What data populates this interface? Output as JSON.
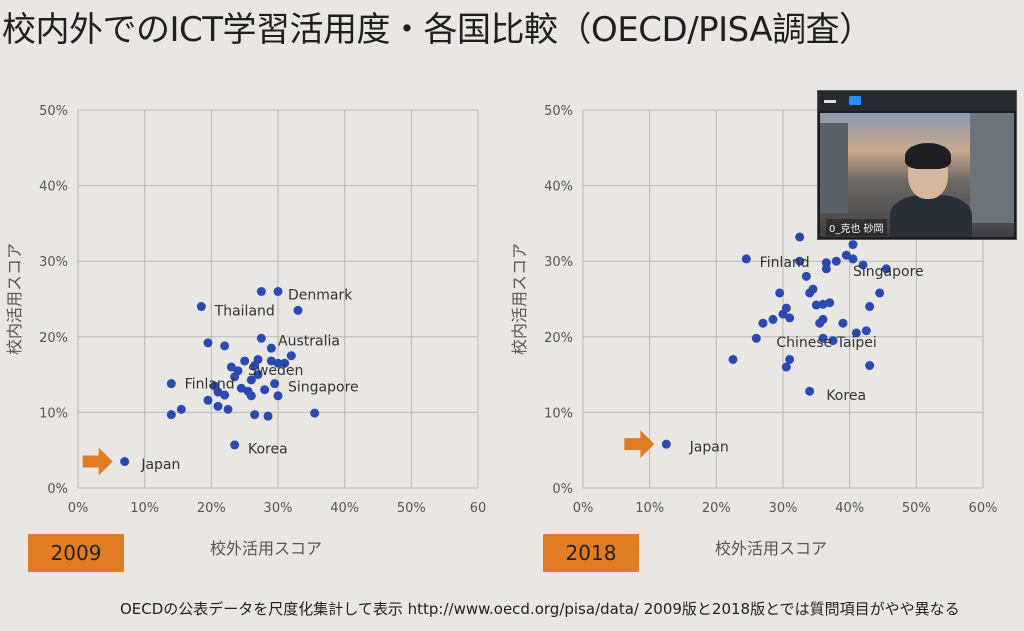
{
  "slide": {
    "title": "校内外でのICT学習活用度・各国比較（OECD/PISA調査）",
    "footnote": "OECDの公表データを尺度化集計して表示 http://www.oecd.org/pisa/data/  2009版と2018版とでは質問項目がやや異なる"
  },
  "video": {
    "participant_name": "0_克也 砂岡",
    "icons": [
      "minimize-icon",
      "video-icon"
    ]
  },
  "colors": {
    "point": "#2a4ab0",
    "arrow": "#e07d23",
    "badge": "#e07d23",
    "grid": "#b9b9b9"
  },
  "chart_data": [
    {
      "type": "scatter",
      "year_label": "2009",
      "xlabel": "校外活用スコア",
      "ylabel": "校内活用スコア",
      "x_ticks": [
        "0%",
        "10%",
        "20%",
        "30%",
        "40%",
        "50%",
        "60"
      ],
      "y_ticks": [
        "0%",
        "10%",
        "20%",
        "30%",
        "40%",
        "50%"
      ],
      "xlim": [
        0,
        60
      ],
      "ylim": [
        0,
        50
      ],
      "grid": true,
      "points": [
        {
          "x": 7,
          "y": 3.5
        },
        {
          "x": 14,
          "y": 13.8
        },
        {
          "x": 14,
          "y": 9.7
        },
        {
          "x": 15.5,
          "y": 10.4
        },
        {
          "x": 18.5,
          "y": 24
        },
        {
          "x": 19.5,
          "y": 19.2
        },
        {
          "x": 19.5,
          "y": 11.6
        },
        {
          "x": 20.5,
          "y": 13.5
        },
        {
          "x": 21,
          "y": 12.7
        },
        {
          "x": 21,
          "y": 10.8
        },
        {
          "x": 22,
          "y": 18.8
        },
        {
          "x": 22,
          "y": 12.3
        },
        {
          "x": 22.5,
          "y": 10.4
        },
        {
          "x": 23,
          "y": 16
        },
        {
          "x": 23.5,
          "y": 14.7
        },
        {
          "x": 24,
          "y": 15.5
        },
        {
          "x": 24.5,
          "y": 13.2
        },
        {
          "x": 25,
          "y": 16.8
        },
        {
          "x": 25.5,
          "y": 12.8
        },
        {
          "x": 26,
          "y": 14.3
        },
        {
          "x": 26,
          "y": 12.2
        },
        {
          "x": 26.5,
          "y": 16.2
        },
        {
          "x": 26.5,
          "y": 9.7
        },
        {
          "x": 27,
          "y": 17
        },
        {
          "x": 27,
          "y": 15
        },
        {
          "x": 27.5,
          "y": 19.8
        },
        {
          "x": 27.5,
          "y": 26
        },
        {
          "x": 28,
          "y": 13
        },
        {
          "x": 28.5,
          "y": 9.5
        },
        {
          "x": 29,
          "y": 18.5
        },
        {
          "x": 29,
          "y": 16.8
        },
        {
          "x": 29.5,
          "y": 13.8
        },
        {
          "x": 30,
          "y": 26
        },
        {
          "x": 30,
          "y": 16.5
        },
        {
          "x": 30,
          "y": 12.2
        },
        {
          "x": 31,
          "y": 16.5
        },
        {
          "x": 32,
          "y": 17.5
        },
        {
          "x": 33,
          "y": 23.5
        },
        {
          "x": 23.5,
          "y": 5.7
        },
        {
          "x": 35.5,
          "y": 9.9
        }
      ],
      "labels": [
        {
          "text": "Japan",
          "x": 9.5,
          "y": 3.2
        },
        {
          "text": "Korea",
          "x": 25.5,
          "y": 5.2
        },
        {
          "text": "Finland",
          "x": 16,
          "y": 13.8
        },
        {
          "text": "Thailand",
          "x": 20.5,
          "y": 23.5
        },
        {
          "text": "Denmark",
          "x": 31.5,
          "y": 25.6
        },
        {
          "text": "Australia",
          "x": 30,
          "y": 19.5
        },
        {
          "text": "Sweden",
          "x": 25.5,
          "y": 15.6
        },
        {
          "text": "Singapore",
          "x": 31.5,
          "y": 13.4
        }
      ]
    },
    {
      "type": "scatter",
      "year_label": "2018",
      "xlabel": "校外活用スコア",
      "ylabel": "校内活用スコア",
      "x_ticks": [
        "0%",
        "10%",
        "20%",
        "30%",
        "40%",
        "50%",
        "60%"
      ],
      "y_ticks": [
        "0%",
        "10%",
        "20%",
        "30%",
        "40%",
        "50%"
      ],
      "xlim": [
        0,
        60
      ],
      "ylim": [
        0,
        50
      ],
      "grid": true,
      "points": [
        {
          "x": 12.5,
          "y": 5.8
        },
        {
          "x": 22.5,
          "y": 17
        },
        {
          "x": 24.5,
          "y": 30.3
        },
        {
          "x": 26,
          "y": 19.8
        },
        {
          "x": 27,
          "y": 21.8
        },
        {
          "x": 28.5,
          "y": 22.3
        },
        {
          "x": 29.5,
          "y": 25.8
        },
        {
          "x": 30,
          "y": 23
        },
        {
          "x": 30.5,
          "y": 23.8
        },
        {
          "x": 30.5,
          "y": 16
        },
        {
          "x": 31,
          "y": 17
        },
        {
          "x": 31,
          "y": 22.5
        },
        {
          "x": 32.5,
          "y": 33.2
        },
        {
          "x": 32.5,
          "y": 30
        },
        {
          "x": 33.5,
          "y": 28
        },
        {
          "x": 34,
          "y": 25.8
        },
        {
          "x": 34.5,
          "y": 26.3
        },
        {
          "x": 35,
          "y": 24.2
        },
        {
          "x": 35.5,
          "y": 21.8
        },
        {
          "x": 36,
          "y": 24.3
        },
        {
          "x": 36,
          "y": 22.3
        },
        {
          "x": 36,
          "y": 19.8
        },
        {
          "x": 36.5,
          "y": 29.8
        },
        {
          "x": 36.5,
          "y": 29
        },
        {
          "x": 37,
          "y": 24.5
        },
        {
          "x": 37.5,
          "y": 19.5
        },
        {
          "x": 38,
          "y": 30
        },
        {
          "x": 39,
          "y": 21.8
        },
        {
          "x": 39.5,
          "y": 30.8
        },
        {
          "x": 40.5,
          "y": 30.3
        },
        {
          "x": 40.5,
          "y": 32.2
        },
        {
          "x": 41,
          "y": 20.5
        },
        {
          "x": 42,
          "y": 29.5
        },
        {
          "x": 42.5,
          "y": 20.8
        },
        {
          "x": 43,
          "y": 24
        },
        {
          "x": 43,
          "y": 16.2
        },
        {
          "x": 44.5,
          "y": 25.8
        },
        {
          "x": 45.5,
          "y": 29
        },
        {
          "x": 34,
          "y": 12.8
        }
      ],
      "labels": [
        {
          "text": "Japan",
          "x": 16,
          "y": 5.5
        },
        {
          "text": "Korea",
          "x": 36.5,
          "y": 12.3
        },
        {
          "text": "Finland",
          "x": 26.5,
          "y": 29.9
        },
        {
          "text": "Singapore",
          "x": 40.5,
          "y": 28.7
        },
        {
          "text": "Chinese Taipei",
          "x": 29,
          "y": 19.3
        }
      ]
    }
  ]
}
